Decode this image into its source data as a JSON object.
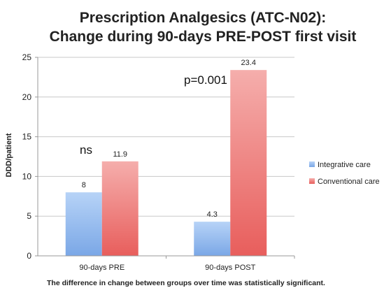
{
  "chart_data": {
    "type": "bar",
    "title_line1": "Prescription Analgesics (ATC-N02):",
    "title_line2": "Change during 90-days PRE-POST first visit",
    "xlabel": "",
    "ylabel": "DDD/patient",
    "ylim": [
      0,
      25
    ],
    "yticks": [
      0,
      5,
      10,
      15,
      20,
      25
    ],
    "categories": [
      "90-days PRE",
      "90-days POST"
    ],
    "series": [
      {
        "name": "Integrative care",
        "values": [
          8,
          4.3
        ],
        "value_labels": [
          "8",
          "4.3"
        ],
        "color": "#7aa7e6",
        "color_light": "#b7d3f7"
      },
      {
        "name": "Conventional care",
        "values": [
          11.9,
          23.4
        ],
        "value_labels": [
          "11.9",
          "23.4"
        ],
        "color": "#e85e5c",
        "color_light": "#f5aeac"
      }
    ],
    "annotations": [
      "ns",
      "p=0.001"
    ],
    "footnote": "The difference in change between groups over time was statistically significant.",
    "grid": true,
    "legend": "right"
  }
}
